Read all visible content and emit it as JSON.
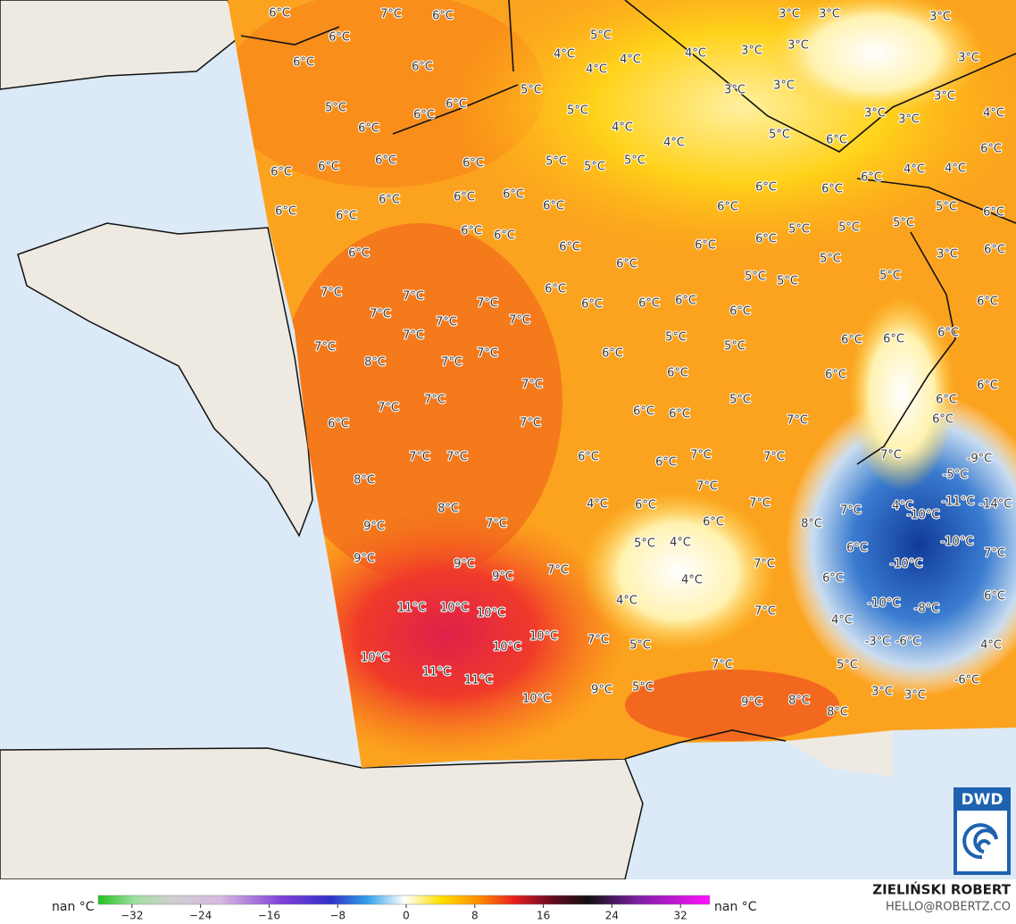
{
  "map": {
    "labels": [
      "6°C",
      "7°C",
      "6°C",
      "6°C",
      "6°C",
      "6°C",
      "5°C",
      "6°C",
      "6°C",
      "6°C",
      "6°C",
      "6°C",
      "6°C",
      "6°C",
      "6°C",
      "6°C",
      "6°C",
      "6°C",
      "6°C",
      "6°C",
      "6°C",
      "6°C",
      "6°C",
      "6°C",
      "5°C",
      "4°C",
      "4°C",
      "4°C",
      "4°C",
      "5°C",
      "5°C",
      "4°C",
      "5°C",
      "5°C",
      "5°C",
      "4°C",
      "3°C",
      "3°C",
      "3°C",
      "3°C",
      "3°C",
      "3°C",
      "3°C",
      "3°C",
      "3°C",
      "3°C",
      "3°C",
      "4°C",
      "6°C",
      "4°C",
      "4°C",
      "5°C",
      "6°C",
      "6°C",
      "6°C",
      "6°C",
      "6°C",
      "5°C",
      "5°C",
      "5°C",
      "5°C",
      "6°C",
      "6°C",
      "6°C",
      "5°C",
      "5°C",
      "3°C",
      "6°C",
      "6°C",
      "6°C",
      "6°C",
      "6°C",
      "6°C",
      "5°C",
      "5°C",
      "6°C",
      "7°C",
      "7°C",
      "7°C",
      "7°C",
      "7°C",
      "7°C",
      "7°C",
      "7°C",
      "8°C",
      "7°C",
      "7°C",
      "7°C",
      "7°C",
      "6°C",
      "7°C",
      "7°C",
      "6°C",
      "5°C",
      "5°C",
      "6°C",
      "6°C",
      "6°C",
      "5°C",
      "6°C",
      "6°C",
      "6°C",
      "6°C",
      "6°C",
      "7°C",
      "6°C",
      "7°C",
      "7°C",
      "6°C",
      "6°C",
      "7°C",
      "7°C",
      "8°C",
      "8°C",
      "7°C",
      "9°C",
      "9°C",
      "9°C",
      "9°C",
      "7°C",
      "4°C",
      "6°C",
      "7°C",
      "6°C",
      "7°C",
      "8°C",
      "5°C",
      "4°C",
      "4°C",
      "4°C",
      "7°C",
      "11°C",
      "10°C",
      "10°C",
      "10°C",
      "10°C",
      "10°C",
      "11°C",
      "11°C",
      "10°C",
      "7°C",
      "5°C",
      "7°C",
      "7°C",
      "9°C",
      "5°C",
      "9°C",
      "8°C",
      "8°C",
      "7°C",
      "6°C",
      "6°C",
      "4°C",
      "4°C",
      "-10°C",
      "-11°C",
      "-14°C",
      "-10°C",
      "-10°C",
      "-10°C",
      "-8°C",
      "7°C",
      "6°C",
      "4°C",
      "5°C",
      "-3°C",
      "-6°C",
      "3°C",
      "3°C",
      "-6°C",
      "-9°C",
      "-5°C",
      "7°C",
      "6°C",
      "6°C"
    ]
  },
  "colorbar": {
    "left_label": "nan °C",
    "right_label": "nan °C",
    "ticks": [
      {
        "value": -32,
        "label": "−32"
      },
      {
        "value": -24,
        "label": "−24"
      },
      {
        "value": -16,
        "label": "−16"
      },
      {
        "value": -8,
        "label": "−8"
      },
      0,
      8,
      16,
      24,
      32
    ]
  },
  "credit": {
    "author": "ZIELIŃSKI ROBERT",
    "contact": "HELLO@ROBERTZ.CO"
  },
  "logo": "DWD"
}
